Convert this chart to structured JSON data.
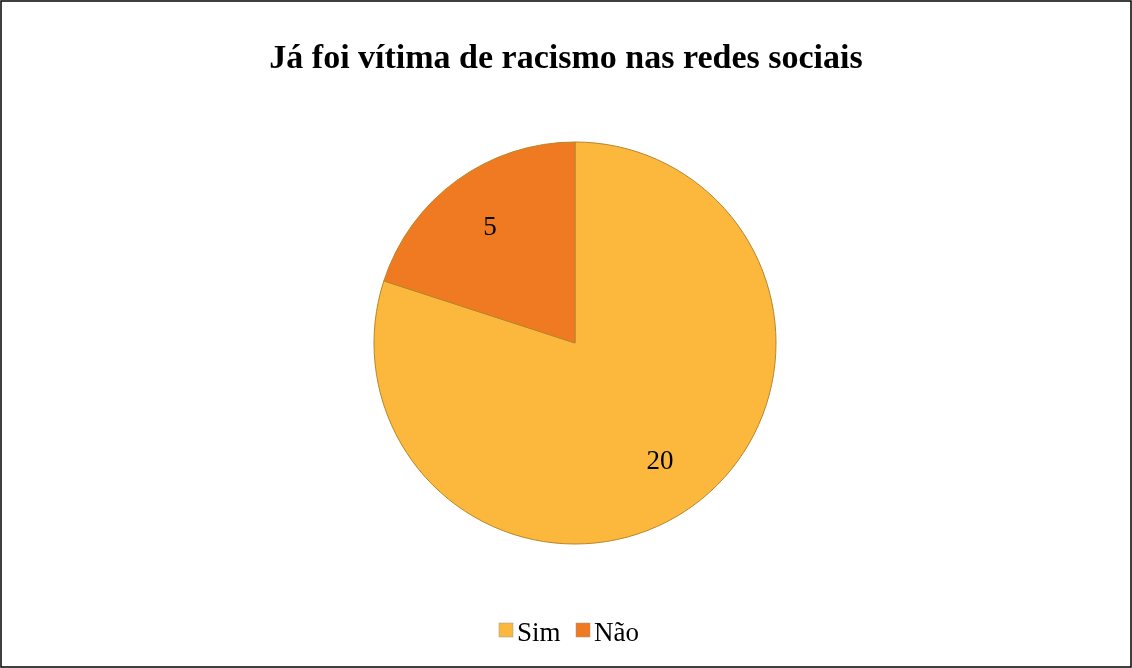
{
  "chart_data": {
    "type": "pie",
    "title": "Já foi vítima de racismo nas redes sociais",
    "categories": [
      "Sim",
      "Não"
    ],
    "values": [
      20,
      5
    ],
    "colors": [
      "#fcb83c",
      "#f07a22"
    ],
    "data_labels": true,
    "legend": "bottom"
  }
}
